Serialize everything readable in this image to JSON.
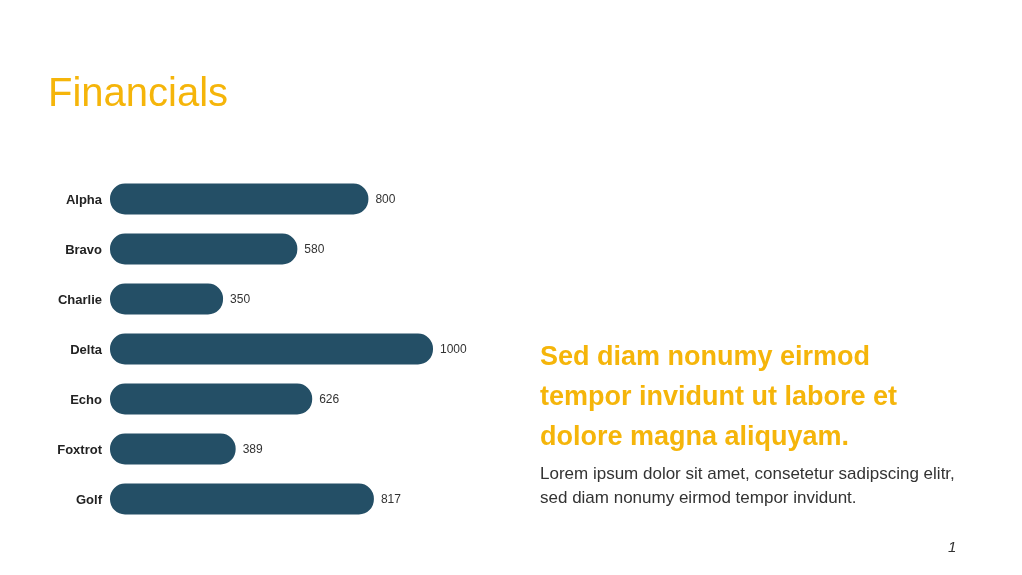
{
  "chart_data": {
    "type": "bar",
    "orientation": "horizontal",
    "title": "Financials",
    "categories": [
      "Alpha",
      "Bravo",
      "Charlie",
      "Delta",
      "Echo",
      "Foxtrot",
      "Golf"
    ],
    "values": [
      800,
      580,
      350,
      1000,
      626,
      389,
      817
    ],
    "color": "#244f66",
    "data_labels": true,
    "annotations": [
      "Sed diam nonumy eirmod tempor invidunt ut labore et dolore magna aliquyam.",
      "Lorem ipsum dolor sit amet, consetetur sadipscing elitr, sed diam nonumy eirmod tempor invidunt.",
      "1"
    ]
  }
}
